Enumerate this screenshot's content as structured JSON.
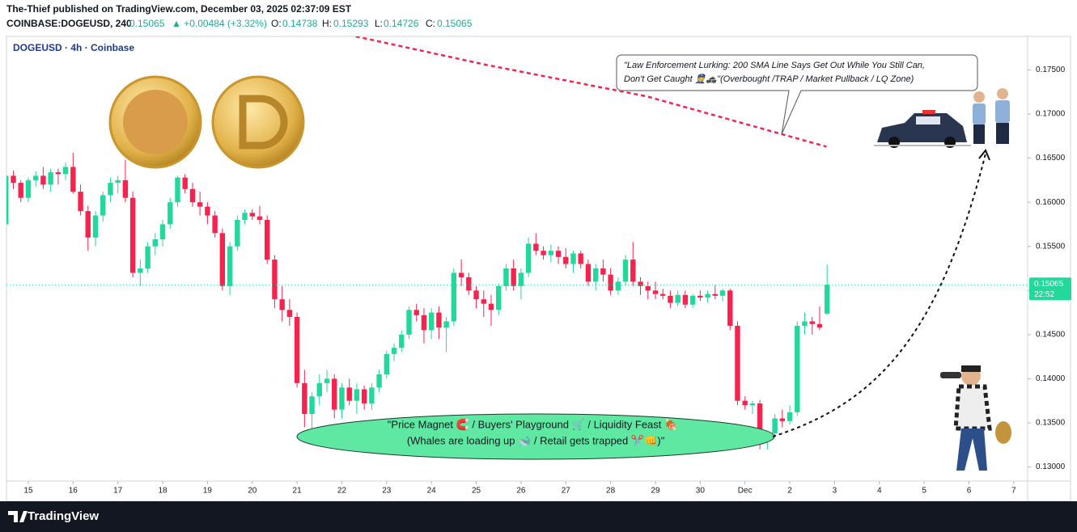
{
  "header": {
    "publisher": "The-Thief published on TradingView.com, December 03, 2025 02:37:09 EST",
    "symbol": "COINBASE:DOGEUSD, 240",
    "last": "0.15065",
    "change": "▲ +0.00484 (+3.32%)",
    "o_label": "O:",
    "o": "0.14738",
    "h_label": "H:",
    "h": "0.15293",
    "l_label": "L:",
    "l": "0.14726",
    "c_label": "C:",
    "c": "0.15065"
  },
  "footer": {
    "brand": "TradingView"
  },
  "chart_data": {
    "type": "candlestick",
    "title": "DOGEUSD · 4h · Coinbase",
    "up_color": "#22d89b",
    "down_color": "#f7234f",
    "x": [
      14.5,
      14.667,
      14.833,
      15,
      15.167,
      15.333,
      15.5,
      15.667,
      15.833,
      16,
      16.167,
      16.333,
      16.5,
      16.667,
      16.833,
      17,
      17.167,
      17.333,
      17.5,
      17.667,
      17.833,
      18,
      18.167,
      18.333,
      18.5,
      18.667,
      18.833,
      19,
      19.167,
      19.333,
      19.5,
      19.667,
      19.833,
      20,
      20.167,
      20.333,
      20.5,
      20.667,
      20.833,
      21,
      21.167,
      21.333,
      21.5,
      21.667,
      21.833,
      22,
      22.167,
      22.333,
      22.5,
      22.667,
      22.833,
      23,
      23.167,
      23.333,
      23.5,
      23.667,
      23.833,
      24,
      24.167,
      24.333,
      24.5,
      24.667,
      24.833,
      25,
      25.167,
      25.333,
      25.5,
      25.667,
      25.833,
      26,
      26.167,
      26.333,
      26.5,
      26.667,
      26.833,
      27,
      27.167,
      27.333,
      27.5,
      27.667,
      27.833,
      28,
      28.167,
      28.333,
      28.5,
      28.667,
      28.833,
      29,
      29.167,
      29.333,
      29.5,
      29.667,
      29.833,
      30,
      30.167,
      30.333,
      30.5,
      30.667,
      30.833,
      31,
      31.167,
      31.333,
      31.5,
      31.667,
      31.833,
      32,
      32.167,
      32.333,
      32.5,
      32.667,
      32.833
    ],
    "ohlc": [
      [
        0.1575,
        0.1635,
        0.157,
        0.163
      ],
      [
        0.163,
        0.1636,
        0.1615,
        0.1622
      ],
      [
        0.1622,
        0.1625,
        0.16,
        0.1605
      ],
      [
        0.1605,
        0.1628,
        0.16,
        0.1625
      ],
      [
        0.1625,
        0.1635,
        0.1618,
        0.163
      ],
      [
        0.163,
        0.164,
        0.1615,
        0.162
      ],
      [
        0.162,
        0.1638,
        0.1612,
        0.1634
      ],
      [
        0.1634,
        0.1638,
        0.162,
        0.1632
      ],
      [
        0.1632,
        0.1645,
        0.1625,
        0.164
      ],
      [
        0.164,
        0.1656,
        0.161,
        0.1612
      ],
      [
        0.1612,
        0.162,
        0.1585,
        0.159
      ],
      [
        0.159,
        0.1596,
        0.1545,
        0.156
      ],
      [
        0.156,
        0.159,
        0.155,
        0.1585
      ],
      [
        0.1585,
        0.1612,
        0.1578,
        0.1608
      ],
      [
        0.1608,
        0.1628,
        0.16,
        0.1622
      ],
      [
        0.1622,
        0.163,
        0.161,
        0.1625
      ],
      [
        0.1625,
        0.1648,
        0.16,
        0.1605
      ],
      [
        0.1605,
        0.1612,
        0.1515,
        0.152
      ],
      [
        0.152,
        0.1535,
        0.1505,
        0.1525
      ],
      [
        0.1525,
        0.1555,
        0.152,
        0.155
      ],
      [
        0.155,
        0.1565,
        0.154,
        0.1558
      ],
      [
        0.1558,
        0.158,
        0.155,
        0.1575
      ],
      [
        0.1575,
        0.1605,
        0.157,
        0.16
      ],
      [
        0.16,
        0.163,
        0.1595,
        0.1628
      ],
      [
        0.1628,
        0.1632,
        0.161,
        0.1615
      ],
      [
        0.1615,
        0.1622,
        0.1595,
        0.16
      ],
      [
        0.16,
        0.1612,
        0.1585,
        0.1595
      ],
      [
        0.1595,
        0.16,
        0.1575,
        0.1585
      ],
      [
        0.1585,
        0.159,
        0.156,
        0.1565
      ],
      [
        0.1565,
        0.157,
        0.15,
        0.1505
      ],
      [
        0.1505,
        0.1555,
        0.1495,
        0.155
      ],
      [
        0.155,
        0.1585,
        0.1545,
        0.158
      ],
      [
        0.158,
        0.1592,
        0.1575,
        0.1588
      ],
      [
        0.1588,
        0.1592,
        0.158,
        0.1584
      ],
      [
        0.1584,
        0.1596,
        0.1575,
        0.158
      ],
      [
        0.158,
        0.1585,
        0.153,
        0.1535
      ],
      [
        0.1535,
        0.154,
        0.148,
        0.149
      ],
      [
        0.149,
        0.1505,
        0.1465,
        0.1478
      ],
      [
        0.1478,
        0.149,
        0.146,
        0.147
      ],
      [
        0.147,
        0.1475,
        0.139,
        0.1395
      ],
      [
        0.1395,
        0.141,
        0.1345,
        0.136
      ],
      [
        0.136,
        0.1385,
        0.133,
        0.138
      ],
      [
        0.138,
        0.1405,
        0.137,
        0.1395
      ],
      [
        0.1395,
        0.141,
        0.1385,
        0.14
      ],
      [
        0.14,
        0.1405,
        0.1355,
        0.1365
      ],
      [
        0.1365,
        0.1395,
        0.1355,
        0.139
      ],
      [
        0.139,
        0.14,
        0.137,
        0.1375
      ],
      [
        0.1375,
        0.1395,
        0.136,
        0.1388
      ],
      [
        0.1388,
        0.1392,
        0.1365,
        0.1372
      ],
      [
        0.1372,
        0.1395,
        0.1365,
        0.139
      ],
      [
        0.139,
        0.141,
        0.1385,
        0.1405
      ],
      [
        0.1405,
        0.1432,
        0.14,
        0.1428
      ],
      [
        0.1428,
        0.144,
        0.142,
        0.1435
      ],
      [
        0.1435,
        0.1455,
        0.143,
        0.145
      ],
      [
        0.145,
        0.1482,
        0.1445,
        0.1478
      ],
      [
        0.1478,
        0.1485,
        0.1465,
        0.1472
      ],
      [
        0.1472,
        0.148,
        0.144,
        0.1455
      ],
      [
        0.1455,
        0.148,
        0.1445,
        0.1475
      ],
      [
        0.1475,
        0.1482,
        0.1445,
        0.1458
      ],
      [
        0.1458,
        0.147,
        0.143,
        0.1465
      ],
      [
        0.1465,
        0.1525,
        0.146,
        0.152
      ],
      [
        0.152,
        0.1535,
        0.1505,
        0.1515
      ],
      [
        0.1515,
        0.152,
        0.1495,
        0.15
      ],
      [
        0.15,
        0.1505,
        0.148,
        0.149
      ],
      [
        0.149,
        0.15,
        0.147,
        0.1485
      ],
      [
        0.1485,
        0.1495,
        0.146,
        0.1478
      ],
      [
        0.1478,
        0.1508,
        0.1472,
        0.1505
      ],
      [
        0.1505,
        0.153,
        0.15,
        0.1525
      ],
      [
        0.1525,
        0.1535,
        0.15,
        0.1505
      ],
      [
        0.1505,
        0.1525,
        0.149,
        0.152
      ],
      [
        0.152,
        0.156,
        0.1515,
        0.1553
      ],
      [
        0.1553,
        0.1565,
        0.154,
        0.1545
      ],
      [
        0.1545,
        0.155,
        0.1535,
        0.154
      ],
      [
        0.154,
        0.1552,
        0.1532,
        0.1545
      ],
      [
        0.1545,
        0.155,
        0.153,
        0.1538
      ],
      [
        0.1538,
        0.1548,
        0.1525,
        0.153
      ],
      [
        0.153,
        0.1545,
        0.152,
        0.1542
      ],
      [
        0.1542,
        0.1545,
        0.1525,
        0.153
      ],
      [
        0.153,
        0.1535,
        0.1505,
        0.151
      ],
      [
        0.151,
        0.153,
        0.15,
        0.1525
      ],
      [
        0.1525,
        0.1535,
        0.151,
        0.1518
      ],
      [
        0.1518,
        0.1525,
        0.1495,
        0.15
      ],
      [
        0.15,
        0.1515,
        0.1495,
        0.151
      ],
      [
        0.151,
        0.154,
        0.1505,
        0.1535
      ],
      [
        0.1535,
        0.1555,
        0.1505,
        0.151
      ],
      [
        0.151,
        0.1515,
        0.1495,
        0.1505
      ],
      [
        0.1505,
        0.151,
        0.149,
        0.15
      ],
      [
        0.15,
        0.151,
        0.149,
        0.1496
      ],
      [
        0.1496,
        0.1502,
        0.149,
        0.1494
      ],
      [
        0.1494,
        0.15,
        0.148,
        0.1486
      ],
      [
        0.1486,
        0.15,
        0.1482,
        0.1495
      ],
      [
        0.1495,
        0.15,
        0.148,
        0.1484
      ],
      [
        0.1484,
        0.1496,
        0.148,
        0.1494
      ],
      [
        0.1494,
        0.15,
        0.1488,
        0.1492
      ],
      [
        0.1492,
        0.15,
        0.1486,
        0.1496
      ],
      [
        0.1496,
        0.1506,
        0.149,
        0.1494
      ],
      [
        0.1494,
        0.1502,
        0.1488,
        0.15
      ],
      [
        0.15,
        0.1502,
        0.1455,
        0.146
      ],
      [
        0.146,
        0.1465,
        0.137,
        0.1375
      ],
      [
        0.1375,
        0.138,
        0.1365,
        0.137
      ],
      [
        0.137,
        0.1375,
        0.136,
        0.1372
      ],
      [
        0.1372,
        0.1376,
        0.132,
        0.133
      ],
      [
        0.133,
        0.134,
        0.132,
        0.1338
      ],
      [
        0.1338,
        0.136,
        0.1335,
        0.1355
      ],
      [
        0.1355,
        0.1365,
        0.1345,
        0.1352
      ],
      [
        0.1352,
        0.137,
        0.1348,
        0.1362
      ],
      [
        0.1362,
        0.1465,
        0.1358,
        0.146
      ],
      [
        0.146,
        0.1475,
        0.145,
        0.1465
      ],
      [
        0.1465,
        0.147,
        0.145,
        0.1462
      ],
      [
        0.1462,
        0.1482,
        0.1455,
        0.14581
      ],
      [
        0.14738,
        0.15293,
        0.14726,
        0.15065
      ]
    ],
    "sma": {
      "color": "#f7234f",
      "x": [
        22.31,
        25.2,
        28.81,
        32.82
      ],
      "values": [
        0.1788,
        0.1756,
        0.172,
        0.1663
      ]
    },
    "last_price": {
      "value": 0.15065,
      "label": "0.15065"
    },
    "countdown": "22:52",
    "xlim": [
      14.513,
      37.31
    ],
    "xticks": [
      15,
      16,
      17,
      18,
      19,
      20,
      21,
      22,
      23,
      24,
      25,
      26,
      27,
      28,
      29,
      30,
      {
        "value": 31,
        "label": "Dec"
      },
      {
        "value": 32,
        "label": "2"
      },
      {
        "value": 33,
        "label": "3"
      },
      {
        "value": 34,
        "label": "4"
      },
      {
        "value": 35,
        "label": "5"
      },
      {
        "value": 36,
        "label": "6"
      },
      {
        "value": 37,
        "label": "7"
      }
    ],
    "ylim": [
      0.1284,
      0.1788
    ],
    "yticks": [
      {
        "value": 0.13,
        "label": "0.13000"
      },
      {
        "value": 0.135,
        "label": "0.13500"
      },
      {
        "value": 0.14,
        "label": "0.14000"
      },
      {
        "value": 0.145,
        "label": "0.14500"
      },
      {
        "value": 0.15,
        "label": "0.15000"
      },
      {
        "value": 0.155,
        "label": "0.15500"
      },
      {
        "value": 0.16,
        "label": "0.16000"
      },
      {
        "value": 0.165,
        "label": "0.16500"
      },
      {
        "value": 0.17,
        "label": "0.17000"
      },
      {
        "value": 0.175,
        "label": "0.17500"
      }
    ],
    "annotations": {
      "callout_1": "\"Law Enforcement Lurking: 200 SMA Line Says Get Out While You Still Can,",
      "callout_2": "Don't Get Caught 👮🚓\"(Overbought /TRAP / Market Pullback / LQ Zone)",
      "zone_1": "\"Price Magnet 🧲 / Buyers' Playground 🛒 / Liquidity Feast 🍖",
      "zone_2": "(Whales are loading up 🐋 / Retail gets trapped ✂️👊)\""
    }
  }
}
